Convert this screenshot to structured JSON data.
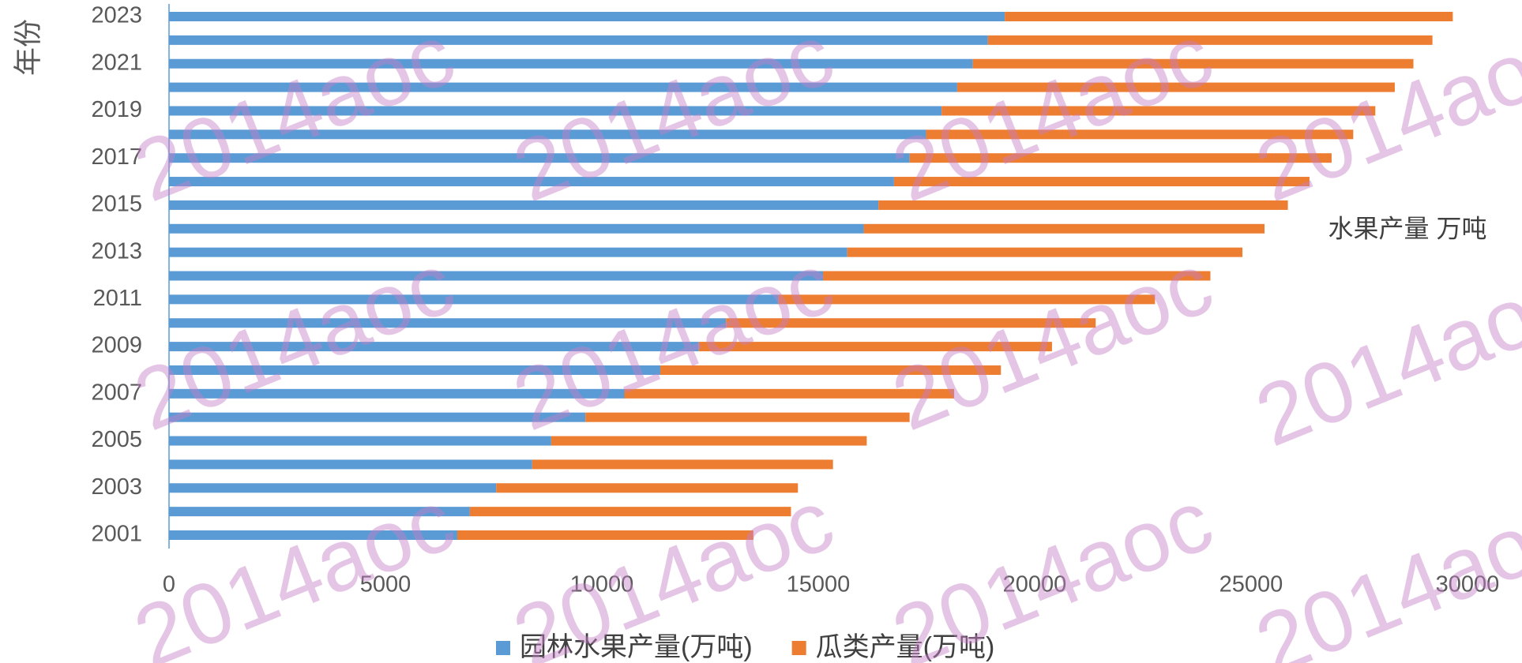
{
  "chart_data": {
    "type": "stacked_barh",
    "y_axis_label": "年份",
    "x_axis_label": "水果产量 万吨",
    "watermark": "2014aoc",
    "categories": [
      "2001",
      null,
      "2003",
      null,
      "2005",
      null,
      "2007",
      null,
      "2009",
      null,
      "2011",
      null,
      "2013",
      null,
      "2015",
      null,
      "2017",
      null,
      "2019",
      null,
      "2021",
      null,
      "2023"
    ],
    "series": [
      {
        "name": "园林水果产量(万吨)",
        "color": "#5b9bd5",
        "values": [
          6660,
          6950,
          7560,
          8390,
          8830,
          9620,
          10520,
          11350,
          12240,
          12870,
          14080,
          15110,
          15670,
          16050,
          16390,
          16750,
          17110,
          17490,
          17850,
          18210,
          18570,
          18920,
          19310
        ]
      },
      {
        "name": "瓜类产量(万吨)",
        "color": "#ed7d31",
        "values": [
          6840,
          7420,
          6970,
          6950,
          7290,
          7490,
          7620,
          7870,
          8160,
          8540,
          8700,
          8950,
          9130,
          9260,
          9460,
          9600,
          9750,
          9870,
          10020,
          10110,
          10180,
          10270,
          10350
        ]
      }
    ],
    "xlim": [
      0,
      30000
    ],
    "xticks": [
      0,
      5000,
      10000,
      15000,
      20000,
      25000,
      30000
    ],
    "legend": "bottom"
  }
}
